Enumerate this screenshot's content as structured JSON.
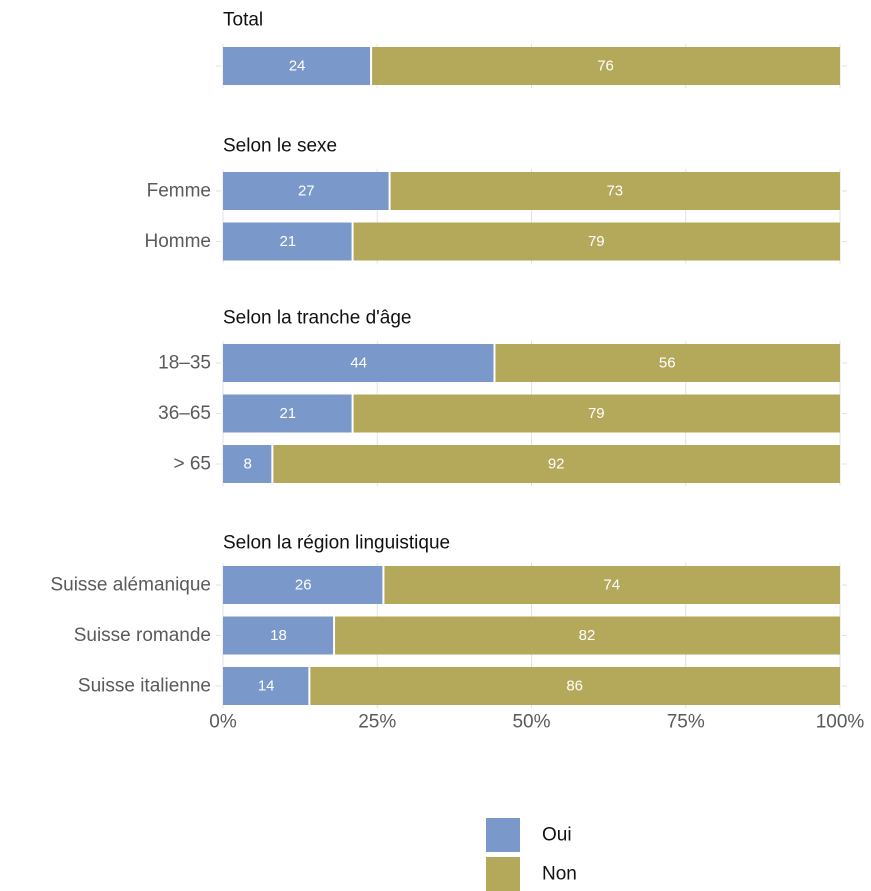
{
  "chart_data": {
    "type": "bar",
    "orientation": "horizontal",
    "stacked": true,
    "series": [
      {
        "name": "Oui",
        "color": "#7a98c9"
      },
      {
        "name": "Non",
        "color": "#b4a95a"
      }
    ],
    "groups": [
      {
        "title": "Total",
        "rows": [
          {
            "label": "",
            "values": [
              24,
              76
            ]
          }
        ]
      },
      {
        "title": "Selon le sexe",
        "rows": [
          {
            "label": "Femme",
            "values": [
              27,
              73
            ]
          },
          {
            "label": "Homme",
            "values": [
              21,
              79
            ]
          }
        ]
      },
      {
        "title": "Selon la tranche d'âge",
        "rows": [
          {
            "label": "18–35",
            "values": [
              44,
              56
            ]
          },
          {
            "label": "36–65",
            "values": [
              21,
              79
            ]
          },
          {
            "label": "> 65",
            "values": [
              8,
              92
            ]
          }
        ]
      },
      {
        "title": "Selon la région linguistique",
        "rows": [
          {
            "label": "Suisse alémanique",
            "values": [
              26,
              74
            ]
          },
          {
            "label": "Suisse romande",
            "values": [
              18,
              82
            ]
          },
          {
            "label": "Suisse italienne",
            "values": [
              14,
              86
            ]
          }
        ]
      }
    ],
    "xticks": [
      "0%",
      "25%",
      "50%",
      "75%",
      "100%"
    ],
    "xlim": [
      0,
      100
    ],
    "grid": true,
    "legend_position": "bottom"
  }
}
